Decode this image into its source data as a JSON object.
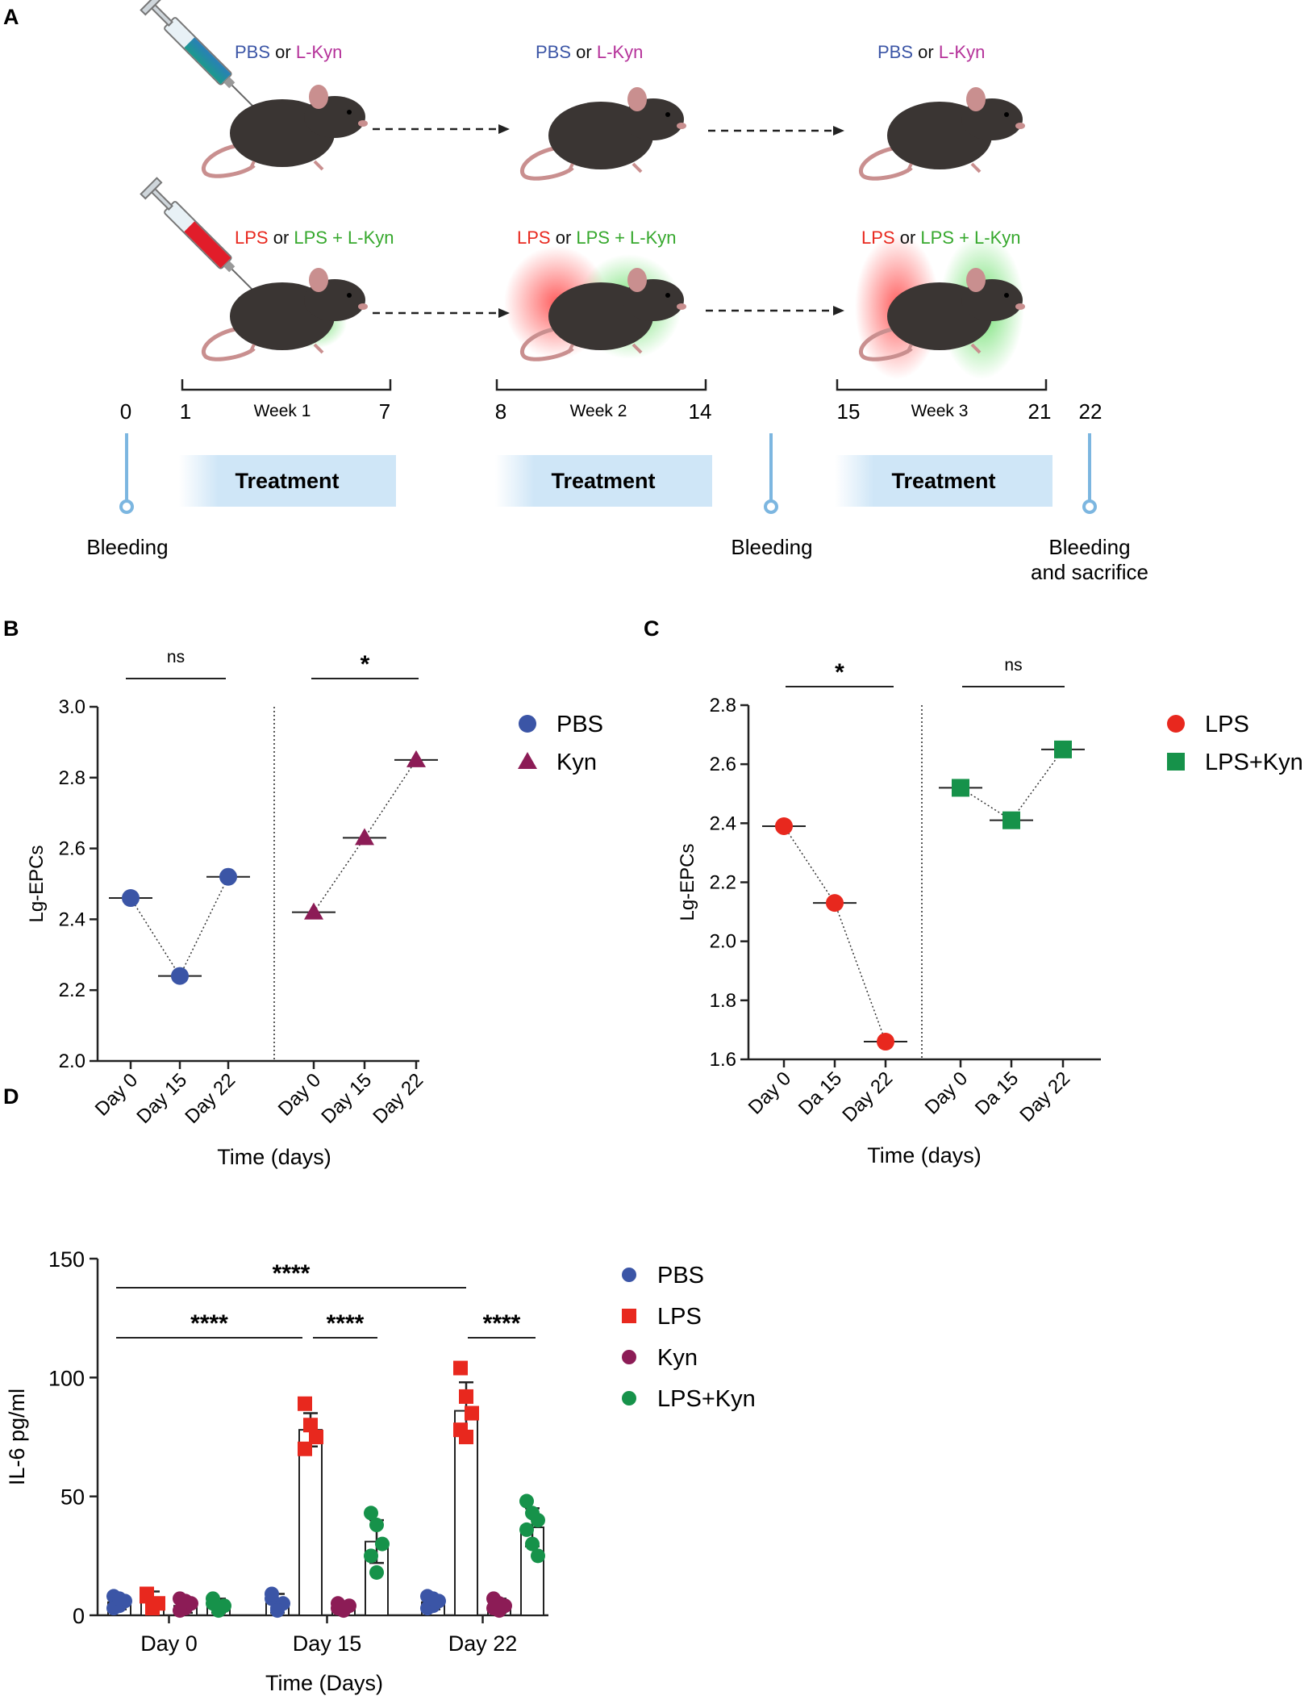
{
  "panels": {
    "A": "A",
    "B": "B",
    "C": "C",
    "D": "D"
  },
  "colors": {
    "pbs": "#3b55a6",
    "kyn_text": "#b5329a",
    "kyn": "#8c1c56",
    "lps": "#e8281e",
    "lps_kyn": "#16924a",
    "lps_kyn_text": "#36a82d",
    "timeline": "#7cb6e0",
    "treatment_bg": "#cfe6f7"
  },
  "schema": {
    "row1_labels": [
      {
        "a": "PBS",
        "or": " or ",
        "b": "L-Kyn"
      },
      {
        "a": "PBS",
        "or": " or ",
        "b": "L-Kyn"
      },
      {
        "a": "PBS",
        "or": " or ",
        "b": "L-Kyn"
      }
    ],
    "row2_labels": [
      {
        "a": "LPS",
        "or": " or ",
        "b": "LPS + L-Kyn"
      },
      {
        "a": "LPS",
        "or": " or ",
        "b": "LPS + L-Kyn"
      },
      {
        "a": "LPS",
        "or": " or ",
        "b": "LPS + L-Kyn"
      }
    ],
    "weeks": [
      {
        "start": "1",
        "label": "Week 1",
        "end": "7"
      },
      {
        "start": "8",
        "label": "Week 2",
        "end": "14"
      },
      {
        "start": "15",
        "label": "Week 3",
        "end": "21"
      }
    ],
    "day0": "0",
    "day22": "22",
    "treatment": "Treatment",
    "bleeding": "Bleeding",
    "bleed_sac_1": "Bleeding",
    "bleed_sac_2": "and sacrifice"
  },
  "chart_data": [
    {
      "id": "B",
      "type": "line",
      "ylabel": "Lg-EPCs",
      "xlabel": "Time (days)",
      "ylim": [
        2.0,
        3.0
      ],
      "yticks": [
        "2.0",
        "2.2",
        "2.4",
        "2.6",
        "2.8",
        "3.0"
      ],
      "categories": [
        "Day 0",
        "Day 15",
        "Day 22"
      ],
      "series": [
        {
          "name": "PBS",
          "marker": "circle",
          "values": [
            2.46,
            2.24,
            2.52
          ]
        },
        {
          "name": "Kyn",
          "marker": "triangle",
          "values": [
            2.42,
            2.63,
            2.85
          ]
        }
      ],
      "significance": [
        "ns",
        "*"
      ]
    },
    {
      "id": "C",
      "type": "line",
      "ylabel": "Lg-EPCs",
      "xlabel": "Time (days)",
      "ylim": [
        1.6,
        2.8
      ],
      "yticks": [
        "1.6",
        "1.8",
        "2.0",
        "2.2",
        "2.4",
        "2.6",
        "2.8"
      ],
      "categories": [
        "Day 0",
        "Da 15",
        "Day 22"
      ],
      "series": [
        {
          "name": "LPS",
          "marker": "circle",
          "values": [
            2.39,
            2.13,
            1.66
          ]
        },
        {
          "name": "LPS+Kyn",
          "marker": "square",
          "values": [
            2.52,
            2.41,
            2.65
          ]
        }
      ],
      "significance": [
        "*",
        "ns"
      ]
    },
    {
      "id": "D",
      "type": "bar",
      "ylabel": "IL-6 pg/ml",
      "xlabel": "Time (Days)",
      "ylim": [
        0,
        150
      ],
      "yticks": [
        "0",
        "50",
        "100",
        "150"
      ],
      "categories": [
        "Day 0",
        "Day 15",
        "Day 22"
      ],
      "series": [
        {
          "name": "PBS",
          "marker": "circle",
          "values": [
            5.5,
            5.0,
            5.5
          ],
          "sd": [
            3,
            4,
            3
          ],
          "points": [
            [
              8,
              4,
              6,
              3,
              7
            ],
            [
              7,
              3,
              5,
              9,
              2
            ],
            [
              8,
              4,
              6,
              3,
              7
            ]
          ]
        },
        {
          "name": "LPS",
          "marker": "square",
          "values": [
            6.0,
            78,
            86
          ],
          "sd": [
            4,
            7,
            12
          ],
          "points": [
            [
              8,
              3,
              5,
              9,
              4
            ],
            [
              89,
              80,
              75,
              70
            ],
            [
              104,
              92,
              85,
              78,
              75
            ]
          ]
        },
        {
          "name": "Kyn",
          "marker": "circle",
          "values": [
            4.0,
            3.5,
            4.0
          ],
          "sd": [
            3,
            2,
            3
          ],
          "points": [
            [
              7,
              3,
              5,
              2,
              6
            ],
            [
              5,
              2,
              4,
              3
            ],
            [
              7,
              2,
              4,
              3,
              5
            ]
          ]
        },
        {
          "name": "LPS+Kyn",
          "marker": "circle",
          "values": [
            4.0,
            31,
            37
          ],
          "sd": [
            3,
            9,
            8
          ],
          "points": [
            [
              7,
              2,
              4,
              5,
              3
            ],
            [
              43,
              38,
              30,
              25,
              18
            ],
            [
              48,
              43,
              40,
              36,
              30,
              25
            ]
          ]
        }
      ],
      "significance": [
        "****",
        "****",
        "****",
        "****"
      ]
    }
  ]
}
